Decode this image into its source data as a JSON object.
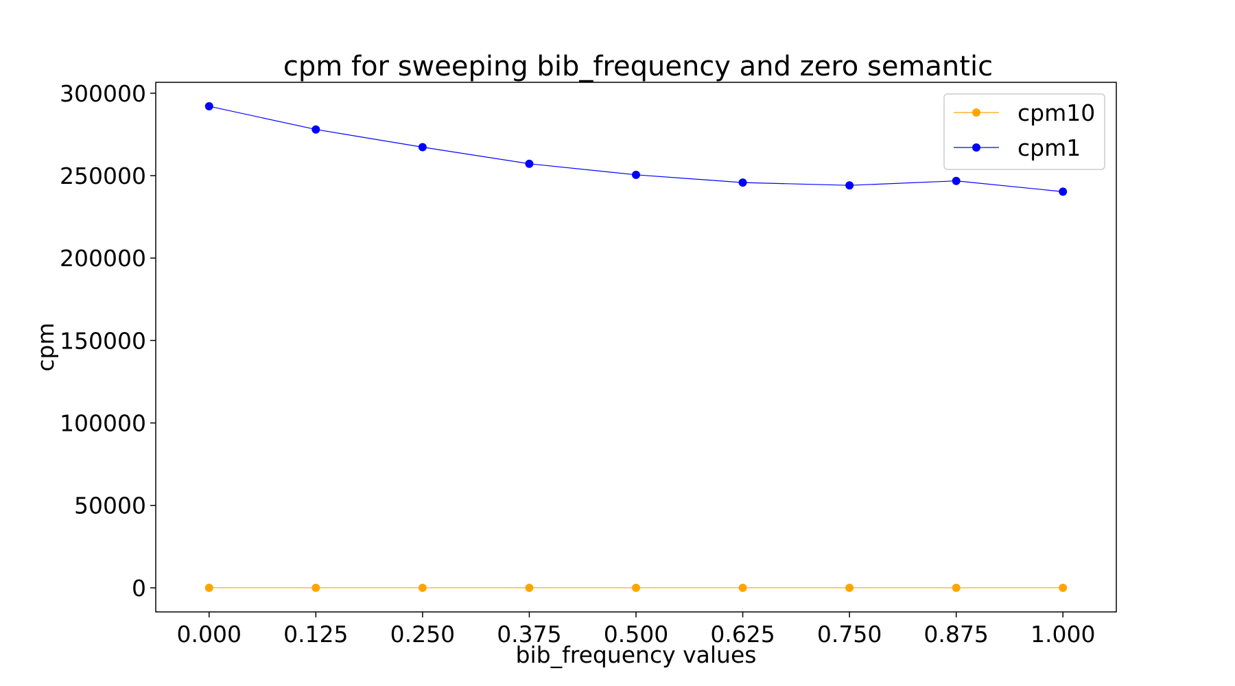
{
  "chart_data": {
    "type": "line",
    "title": "cpm for sweeping bib_frequency and zero semantic",
    "xlabel": "bib_frequency values",
    "ylabel": "cpm",
    "x": [
      0.0,
      0.125,
      0.25,
      0.375,
      0.5,
      0.625,
      0.75,
      0.875,
      1.0
    ],
    "xticks": [
      "0.000",
      "0.125",
      "0.250",
      "0.375",
      "0.500",
      "0.625",
      "0.750",
      "0.875",
      "1.000"
    ],
    "yticks": [
      0,
      50000,
      100000,
      150000,
      200000,
      250000,
      300000
    ],
    "ytick_labels": [
      "0",
      "50000",
      "100000",
      "150000",
      "200000",
      "250000",
      "300000"
    ],
    "xlim": [
      -0.0625,
      1.0625
    ],
    "ylim": [
      -14600,
      306600
    ],
    "grid": false,
    "legend_position": "top-right",
    "series": [
      {
        "name": "cpm10",
        "color": "#FFA500",
        "marker": "circle",
        "values": [
          30,
          30,
          30,
          30,
          30,
          30,
          30,
          30,
          30
        ]
      },
      {
        "name": "cpm1",
        "color": "#0000FF",
        "marker": "circle",
        "values": [
          292100,
          278000,
          267300,
          257200,
          250500,
          245800,
          244100,
          246800,
          240300
        ]
      }
    ]
  }
}
